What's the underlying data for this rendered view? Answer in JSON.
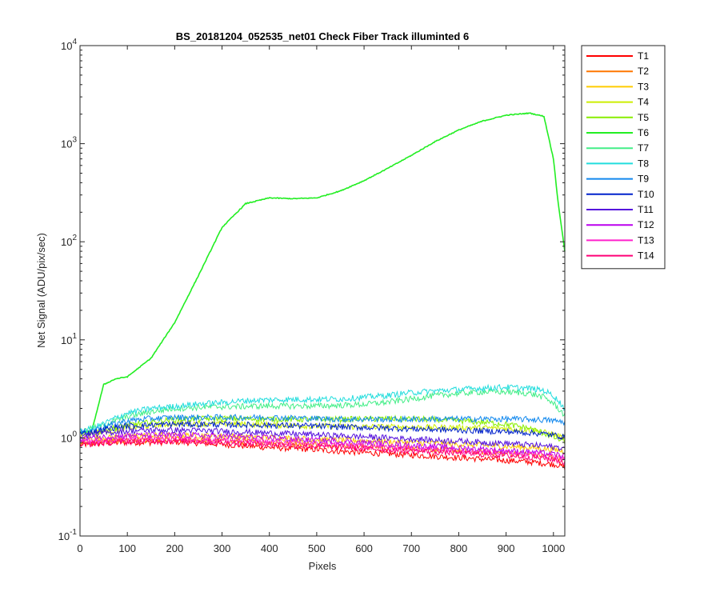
{
  "chart_data": {
    "type": "line",
    "title": "BS_20181204_052535_net01   Check Fiber     Track illuminted 6",
    "xlabel": "Pixels",
    "ylabel": "Net Signal (ADU/pix/sec)",
    "xlim": [
      0,
      1024
    ],
    "ylim": [
      0.1,
      10000
    ],
    "yscale": "log",
    "x_ticks": [
      "0",
      "100",
      "200",
      "300",
      "400",
      "500",
      "600",
      "700",
      "800",
      "900",
      "1000"
    ],
    "y_ticks": [
      {
        "base": "10",
        "exp": "-1",
        "value": 0.1
      },
      {
        "base": "10",
        "exp": "0",
        "value": 1
      },
      {
        "base": "10",
        "exp": "1",
        "value": 10
      },
      {
        "base": "10",
        "exp": "2",
        "value": 100
      },
      {
        "base": "10",
        "exp": "3",
        "value": 1000
      },
      {
        "base": "10",
        "exp": "4",
        "value": 10000
      }
    ],
    "grid": false,
    "legend_position": "outside-top-right",
    "x": [
      0,
      25,
      50,
      75,
      100,
      150,
      200,
      250,
      300,
      350,
      400,
      450,
      500,
      550,
      600,
      650,
      700,
      750,
      800,
      850,
      900,
      950,
      980,
      1000,
      1010,
      1024
    ],
    "series": [
      {
        "name": "T1",
        "color": "#ff0000",
        "values": [
          0.85,
          0.87,
          0.88,
          0.89,
          0.9,
          0.9,
          0.91,
          0.89,
          0.86,
          0.83,
          0.8,
          0.78,
          0.76,
          0.73,
          0.71,
          0.69,
          0.67,
          0.65,
          0.63,
          0.61,
          0.59,
          0.57,
          0.55,
          0.54,
          0.53,
          0.5
        ]
      },
      {
        "name": "T2",
        "color": "#ff7700",
        "values": [
          0.88,
          0.9,
          0.92,
          0.93,
          0.95,
          0.96,
          0.97,
          0.96,
          0.94,
          0.92,
          0.9,
          0.88,
          0.86,
          0.84,
          0.82,
          0.8,
          0.78,
          0.76,
          0.74,
          0.72,
          0.7,
          0.68,
          0.66,
          0.64,
          0.63,
          0.6
        ]
      },
      {
        "name": "T3",
        "color": "#ffcc00",
        "values": [
          0.95,
          0.98,
          1.0,
          1.02,
          1.04,
          1.06,
          1.07,
          1.06,
          1.05,
          1.03,
          1.01,
          0.99,
          0.97,
          0.95,
          0.94,
          0.92,
          0.9,
          0.88,
          0.86,
          0.84,
          0.82,
          0.8,
          0.78,
          0.76,
          0.75,
          0.72
        ]
      },
      {
        "name": "T4",
        "color": "#ccee00",
        "values": [
          1.08,
          1.12,
          1.16,
          1.2,
          1.26,
          1.34,
          1.4,
          1.4,
          1.4,
          1.38,
          1.36,
          1.34,
          1.32,
          1.31,
          1.3,
          1.3,
          1.29,
          1.28,
          1.28,
          1.27,
          1.25,
          1.2,
          1.14,
          1.08,
          1.05,
          1.0
        ]
      },
      {
        "name": "T5",
        "color": "#88ee00",
        "values": [
          1.1,
          1.15,
          1.2,
          1.27,
          1.35,
          1.45,
          1.55,
          1.57,
          1.58,
          1.57,
          1.56,
          1.55,
          1.55,
          1.55,
          1.56,
          1.57,
          1.56,
          1.54,
          1.5,
          1.45,
          1.38,
          1.25,
          1.12,
          1.02,
          0.97,
          0.92
        ]
      },
      {
        "name": "T6",
        "color": "#22ee22",
        "values": [
          1.12,
          1.18,
          3.5,
          4.0,
          4.2,
          6.5,
          15,
          45,
          140,
          245,
          280,
          275,
          280,
          330,
          420,
          560,
          760,
          1050,
          1380,
          1700,
          1950,
          2050,
          1900,
          700,
          250,
          80
        ]
      },
      {
        "name": "T7",
        "color": "#44ee88",
        "values": [
          1.15,
          1.25,
          1.35,
          1.5,
          1.65,
          1.85,
          2.0,
          2.05,
          2.08,
          2.1,
          2.12,
          2.12,
          2.12,
          2.15,
          2.2,
          2.32,
          2.5,
          2.7,
          2.85,
          2.95,
          2.95,
          2.85,
          2.6,
          2.25,
          2.0,
          1.7
        ]
      },
      {
        "name": "T8",
        "color": "#22dddd",
        "values": [
          1.15,
          1.25,
          1.4,
          1.6,
          1.8,
          2.0,
          2.1,
          2.22,
          2.3,
          2.4,
          2.45,
          2.47,
          2.48,
          2.5,
          2.6,
          2.72,
          2.9,
          3.02,
          3.12,
          3.22,
          3.3,
          3.2,
          3.05,
          2.7,
          2.4,
          2.0
        ]
      },
      {
        "name": "T9",
        "color": "#1188ee",
        "values": [
          1.12,
          1.2,
          1.3,
          1.4,
          1.5,
          1.58,
          1.62,
          1.62,
          1.62,
          1.62,
          1.62,
          1.6,
          1.58,
          1.56,
          1.55,
          1.55,
          1.55,
          1.56,
          1.56,
          1.56,
          1.56,
          1.55,
          1.53,
          1.5,
          1.48,
          1.45
        ]
      },
      {
        "name": "T10",
        "color": "#0022cc",
        "values": [
          1.1,
          1.15,
          1.22,
          1.28,
          1.32,
          1.36,
          1.38,
          1.38,
          1.37,
          1.36,
          1.35,
          1.34,
          1.32,
          1.3,
          1.28,
          1.26,
          1.24,
          1.22,
          1.2,
          1.18,
          1.16,
          1.13,
          1.1,
          1.07,
          1.05,
          1.02
        ]
      },
      {
        "name": "T11",
        "color": "#5511dd",
        "values": [
          1.05,
          1.08,
          1.12,
          1.15,
          1.18,
          1.2,
          1.2,
          1.19,
          1.17,
          1.15,
          1.12,
          1.1,
          1.08,
          1.05,
          1.03,
          1.0,
          0.98,
          0.95,
          0.93,
          0.9,
          0.88,
          0.85,
          0.83,
          0.81,
          0.8,
          0.78
        ]
      },
      {
        "name": "T12",
        "color": "#bb00ee",
        "values": [
          0.98,
          1.0,
          1.02,
          1.04,
          1.06,
          1.07,
          1.07,
          1.06,
          1.04,
          1.02,
          1.0,
          0.97,
          0.95,
          0.92,
          0.9,
          0.87,
          0.84,
          0.82,
          0.79,
          0.77,
          0.74,
          0.72,
          0.7,
          0.68,
          0.67,
          0.65
        ]
      },
      {
        "name": "T13",
        "color": "#ff22cc",
        "values": [
          0.9,
          0.92,
          0.94,
          0.96,
          0.97,
          0.98,
          0.98,
          0.97,
          0.95,
          0.93,
          0.91,
          0.89,
          0.87,
          0.85,
          0.83,
          0.81,
          0.79,
          0.77,
          0.75,
          0.73,
          0.71,
          0.69,
          0.67,
          0.65,
          0.64,
          0.62
        ]
      },
      {
        "name": "T14",
        "color": "#ff0077",
        "values": [
          0.85,
          0.87,
          0.89,
          0.91,
          0.92,
          0.93,
          0.93,
          0.92,
          0.9,
          0.88,
          0.86,
          0.84,
          0.82,
          0.8,
          0.78,
          0.76,
          0.74,
          0.72,
          0.7,
          0.68,
          0.66,
          0.64,
          0.62,
          0.6,
          0.59,
          0.56
        ]
      }
    ]
  }
}
